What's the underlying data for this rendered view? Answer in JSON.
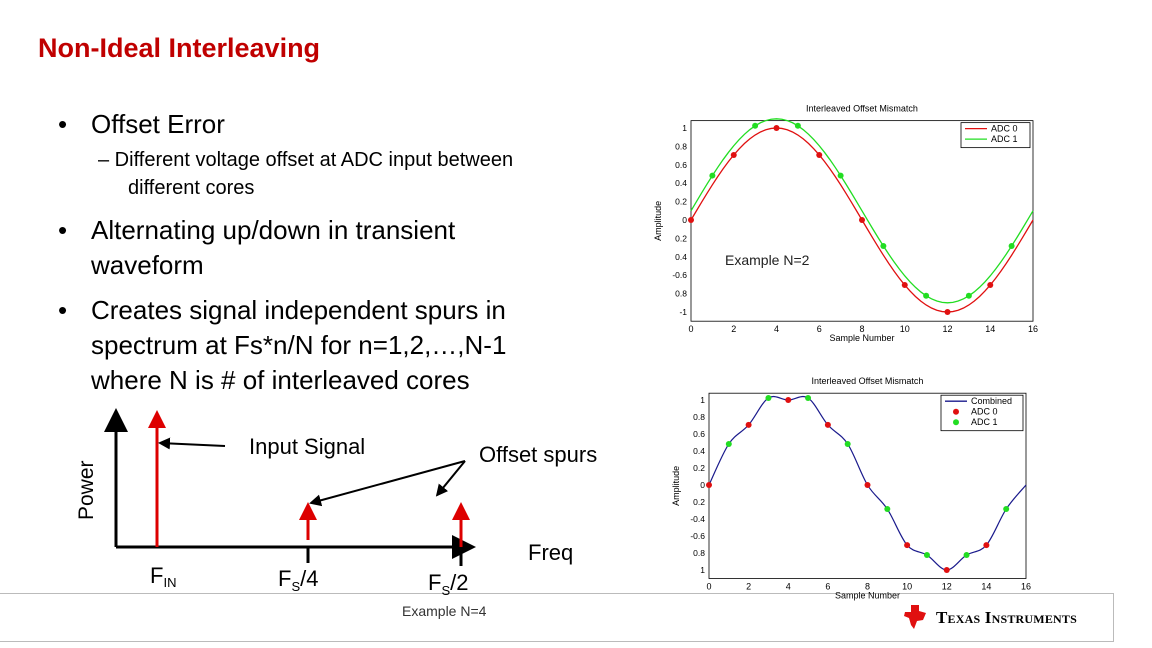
{
  "title": "Non-Ideal Interleaving",
  "bullets": [
    {
      "text": "Offset Error",
      "sub": [
        "– Different voltage offset at ADC input between",
        "different cores"
      ]
    },
    {
      "lines": [
        "Alternating up/down in transient",
        "waveform"
      ]
    },
    {
      "lines": [
        "Creates signal independent spurs in",
        "spectrum at Fs*n/N for n=1,2,…,N-1",
        "where N is # of interleaved cores"
      ]
    }
  ],
  "bullet_glyph": "•",
  "diagram": {
    "ylabel": "Power",
    "xlabel": "Freq",
    "input_label": "Input Signal",
    "spur_label": "Offset spurs",
    "fin": "F",
    "fin_sub": "IN",
    "fs4": "F",
    "fs4_sub": "S",
    "fs4_tail": "/4",
    "fs2": "F",
    "fs2_sub": "S",
    "fs2_tail": "/2",
    "example": "Example N=4"
  },
  "example_n2": "Example N=2",
  "logo_text": "Texas Instruments",
  "chart_data": [
    {
      "type": "line",
      "title": "Interleaved Offset Mismatch",
      "xlabel": "Sample Number",
      "ylabel": "Amplitude",
      "xlim": [
        0,
        16
      ],
      "ylim": [
        -1.1,
        1.1
      ],
      "xticks": [
        "0",
        "2",
        "4",
        "6",
        "8",
        "10",
        "12",
        "14",
        "16"
      ],
      "yticks": [
        "1",
        "0.8",
        "0.6",
        "0.4",
        "0.2",
        "0",
        "0.2",
        "0.4",
        "-0.6",
        "0.8",
        "-1"
      ],
      "legend": [
        "ADC 0",
        "ADC 1"
      ],
      "legend_position": "top-right",
      "series": [
        {
          "name": "ADC 0",
          "color": "#e01010",
          "offset": 0,
          "x": [
            0,
            2,
            4,
            6,
            8,
            10,
            12,
            14
          ],
          "y": [
            0,
            0.707,
            1,
            0.707,
            0,
            -0.707,
            -1,
            -0.707
          ]
        },
        {
          "name": "ADC 1",
          "color": "#22dd22",
          "offset": 0.1,
          "x": [
            1,
            3,
            5,
            7,
            9,
            11,
            13,
            15
          ],
          "y": [
            0.483,
            1.024,
            1.024,
            0.483,
            -0.283,
            -0.824,
            -0.824,
            -0.283
          ]
        }
      ]
    },
    {
      "type": "line",
      "title": "Interleaved Offset Mismatch",
      "xlabel": "Sample Number",
      "ylabel": "Amplitude",
      "xlim": [
        0,
        16
      ],
      "ylim": [
        -1.1,
        1.1
      ],
      "xticks": [
        "0",
        "2",
        "4",
        "6",
        "8",
        "10",
        "12",
        "14",
        "16"
      ],
      "yticks": [
        "1",
        "0.8",
        "0.6",
        "0.4",
        "0.2",
        "0",
        "0.2",
        "-0.4",
        "-0.6",
        "0.8",
        "1"
      ],
      "legend": [
        "Combined",
        "ADC 0",
        "ADC 1"
      ],
      "legend_position": "top-right",
      "series": [
        {
          "name": "Combined",
          "color": "#1a1a8c",
          "x": [
            0,
            1,
            2,
            3,
            4,
            5,
            6,
            7,
            8,
            9,
            10,
            11,
            12,
            13,
            14,
            15,
            16
          ],
          "y": [
            0,
            0.483,
            0.707,
            1.024,
            1,
            1.024,
            0.707,
            0.483,
            0,
            -0.283,
            -0.707,
            -0.824,
            -1,
            -0.824,
            -0.707,
            -0.283,
            0
          ]
        },
        {
          "name": "ADC 0",
          "color": "#e01010",
          "x": [
            0,
            2,
            4,
            6,
            8,
            10,
            12,
            14
          ],
          "y": [
            0,
            0.707,
            1,
            0.707,
            0,
            -0.707,
            -1,
            -0.707
          ]
        },
        {
          "name": "ADC 1",
          "color": "#22dd22",
          "x": [
            1,
            3,
            5,
            7,
            9,
            11,
            13,
            15
          ],
          "y": [
            0.483,
            1.024,
            1.024,
            0.483,
            -0.283,
            -0.824,
            -0.824,
            -0.283
          ]
        }
      ]
    }
  ]
}
